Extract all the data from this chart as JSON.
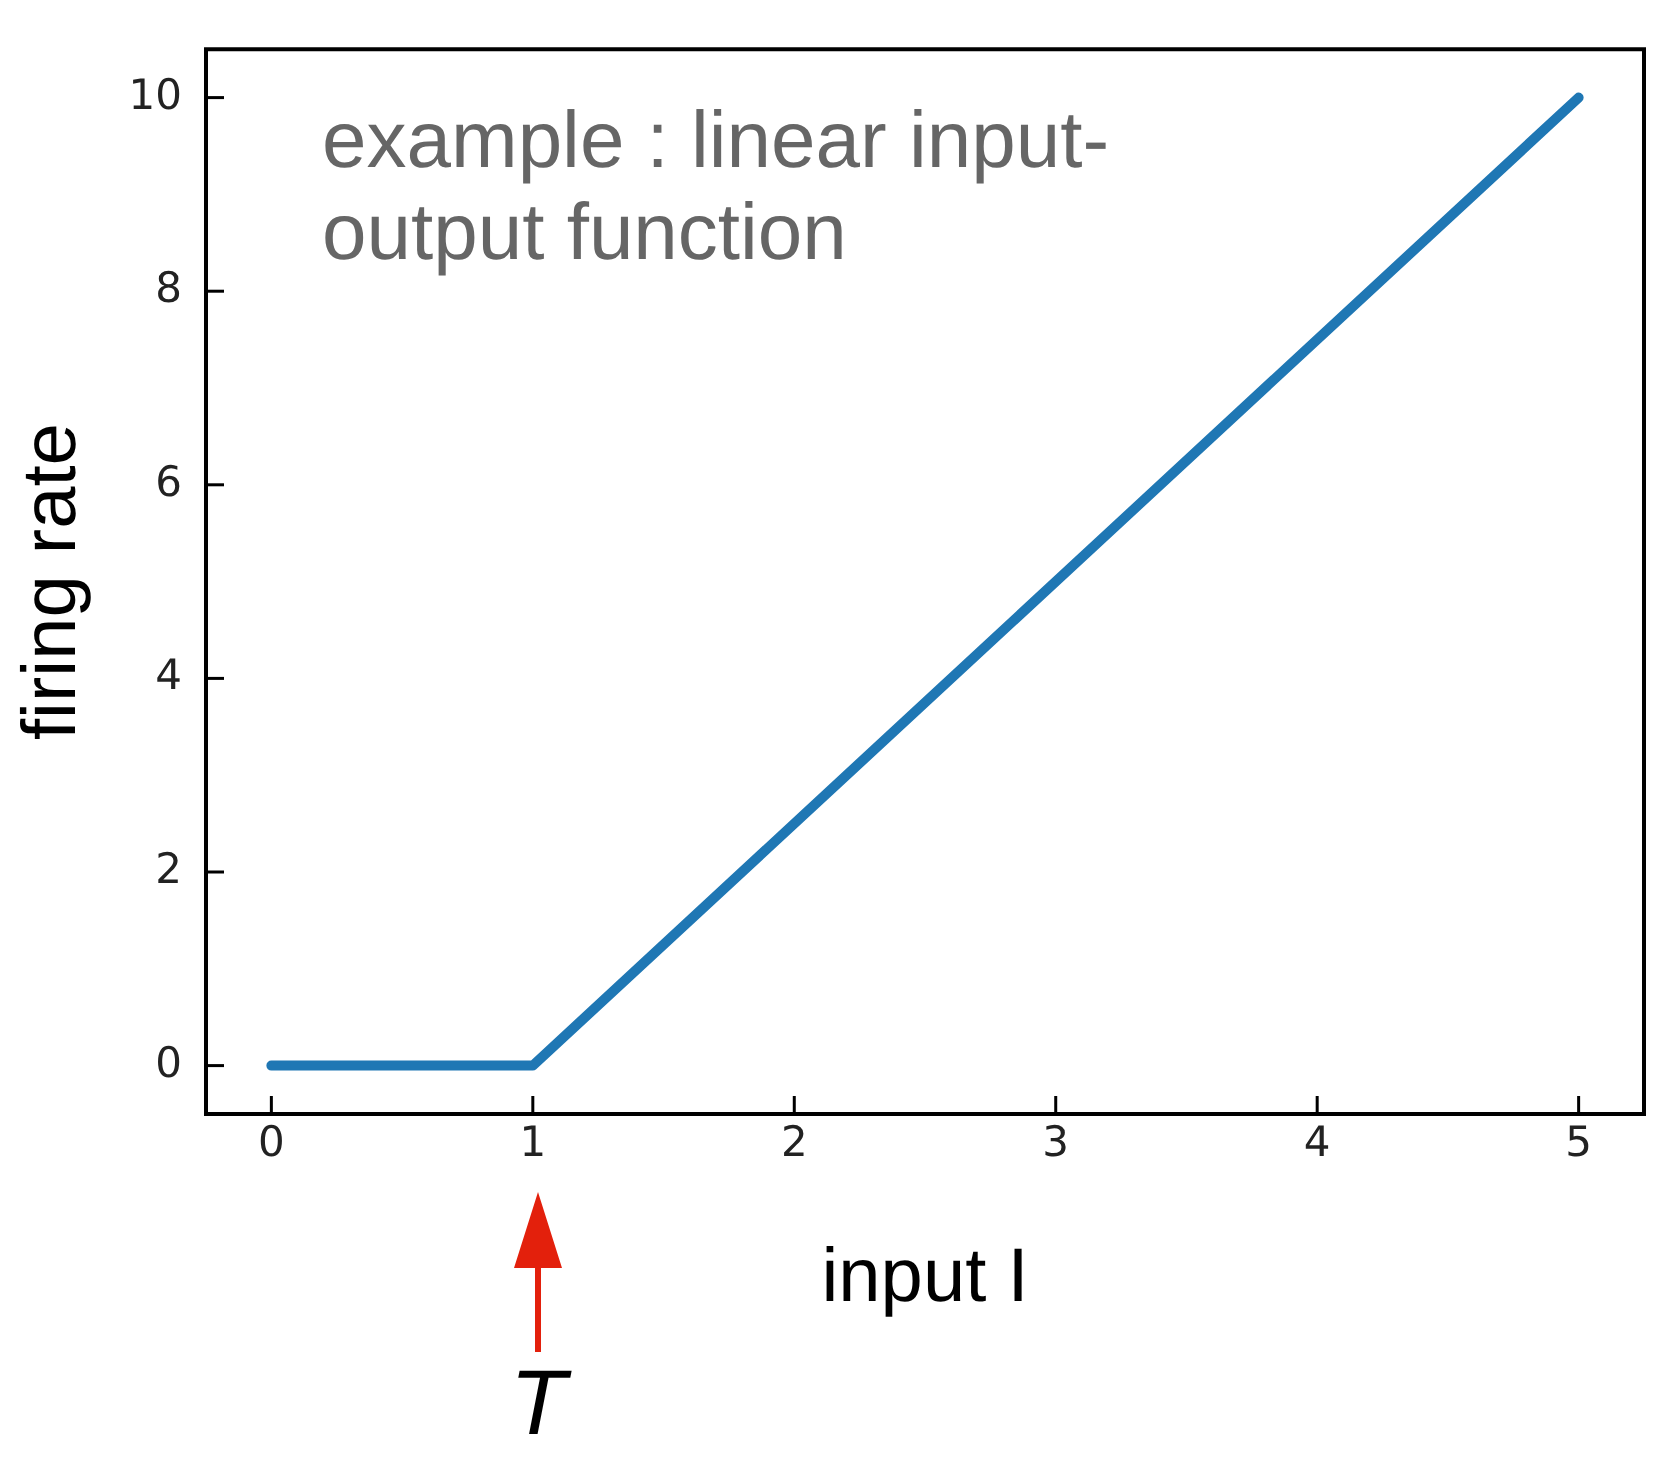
{
  "chart_data": {
    "type": "line",
    "xlabel": "input I",
    "ylabel": "firing rate",
    "x": [
      0,
      1,
      5
    ],
    "series": [
      {
        "color": "#1f77b4",
        "values": [
          0,
          0,
          10
        ]
      }
    ],
    "xlim": [
      -0.25,
      5.25
    ],
    "xticks": [
      0,
      1,
      2,
      3,
      4,
      5
    ],
    "ylim": [
      -0.5,
      10.5
    ],
    "yticks": [
      0,
      2,
      4,
      6,
      8,
      10
    ],
    "grid": false,
    "legend": false,
    "marker": "none",
    "line_style": "solid",
    "annotations": [
      "example : linear input-output function",
      "T"
    ]
  }
}
